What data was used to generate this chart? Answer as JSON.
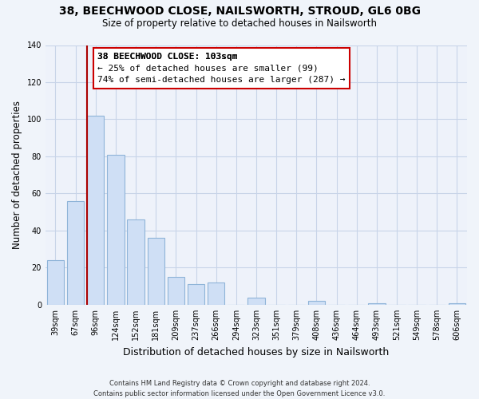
{
  "title": "38, BEECHWOOD CLOSE, NAILSWORTH, STROUD, GL6 0BG",
  "subtitle": "Size of property relative to detached houses in Nailsworth",
  "xlabel": "Distribution of detached houses by size in Nailsworth",
  "ylabel": "Number of detached properties",
  "bar_labels": [
    "39sqm",
    "67sqm",
    "96sqm",
    "124sqm",
    "152sqm",
    "181sqm",
    "209sqm",
    "237sqm",
    "266sqm",
    "294sqm",
    "323sqm",
    "351sqm",
    "379sqm",
    "408sqm",
    "436sqm",
    "464sqm",
    "493sqm",
    "521sqm",
    "549sqm",
    "578sqm",
    "606sqm"
  ],
  "bar_values": [
    24,
    56,
    102,
    81,
    46,
    36,
    15,
    11,
    12,
    0,
    4,
    0,
    0,
    2,
    0,
    0,
    1,
    0,
    0,
    0,
    1
  ],
  "bar_color": "#cfdff5",
  "bar_edge_color": "#8fb4d8",
  "vline_x": 1.575,
  "vline_color": "#aa0000",
  "ylim": [
    0,
    140
  ],
  "yticks": [
    0,
    20,
    40,
    60,
    80,
    100,
    120,
    140
  ],
  "annotation_title": "38 BEECHWOOD CLOSE: 103sqm",
  "annotation_line1": "← 25% of detached houses are smaller (99)",
  "annotation_line2": "74% of semi-detached houses are larger (287) →",
  "annotation_box_color": "#ffffff",
  "annotation_box_edge": "#cc0000",
  "footer_line1": "Contains HM Land Registry data © Crown copyright and database right 2024.",
  "footer_line2": "Contains public sector information licensed under the Open Government Licence v3.0.",
  "background_color": "#f0f4fa",
  "plot_bg_color": "#eef2fa",
  "grid_color": "#c8d4e8"
}
